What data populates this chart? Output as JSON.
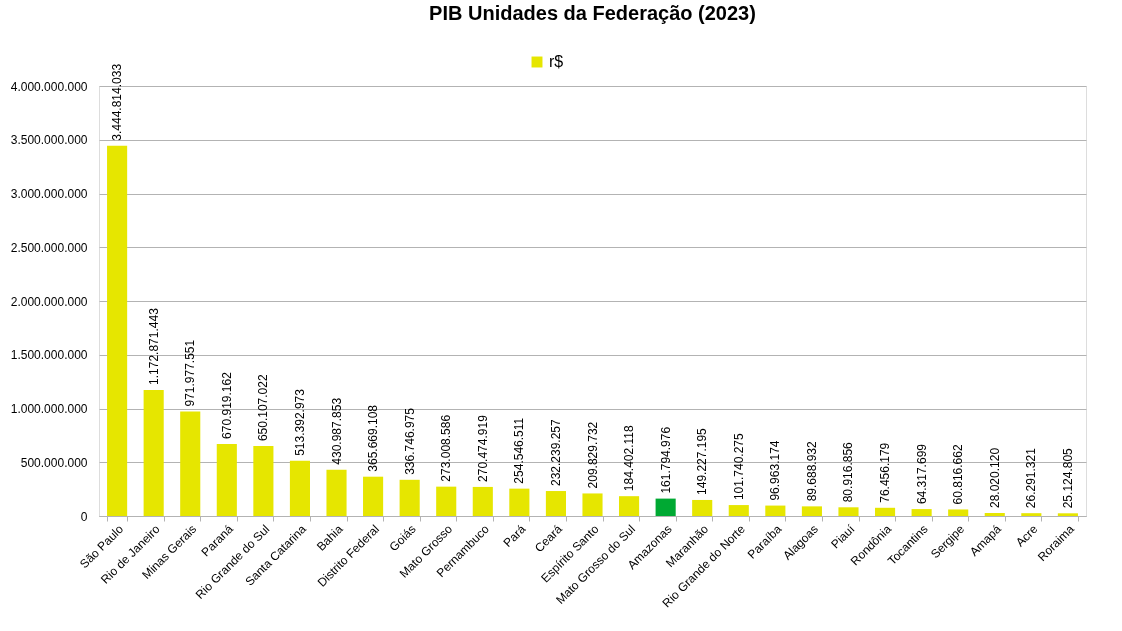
{
  "chart_data": {
    "type": "bar",
    "title": "PIB Unidades da Federação (2023)",
    "categories": [
      "São Paulo",
      "Rio de Janeiro",
      "Minas Gerais",
      "Paraná",
      "Rio Grande do Sul",
      "Santa Catarina",
      "Bahia",
      "Distrito Federal",
      "Goiás",
      "Mato Grosso",
      "Pernambuco",
      "Pará",
      "Ceará",
      "Espírito Santo",
      "Mato Grosso do Sul",
      "Amazonas",
      "Maranhão",
      "Rio Grande do Norte",
      "Paraíba",
      "Alagoas",
      "Piauí",
      "Rondônia",
      "Tocantins",
      "Sergipe",
      "Amapá",
      "Acre",
      "Roraima"
    ],
    "series": [
      {
        "name": "r$",
        "color": "#e6e600",
        "values": [
          3444814033,
          1172871443,
          971977551,
          670919162,
          650107022,
          513392973,
          430987853,
          365669108,
          336746975,
          273008586,
          270474919,
          254546511,
          232239257,
          209829732,
          184402118,
          161794976,
          149227195,
          101740275,
          96963174,
          89688932,
          80916856,
          76456179,
          64317699,
          60816662,
          28020120,
          26291321,
          25124805
        ],
        "colors": [
          "#e6e600",
          "#e6e600",
          "#e6e600",
          "#e6e600",
          "#e6e600",
          "#e6e600",
          "#e6e600",
          "#e6e600",
          "#e6e600",
          "#e6e600",
          "#e6e600",
          "#e6e600",
          "#e6e600",
          "#e6e600",
          "#e6e600",
          "#00a933",
          "#e6e600",
          "#e6e600",
          "#e6e600",
          "#e6e600",
          "#e6e600",
          "#e6e600",
          "#e6e600",
          "#e6e600",
          "#e6e600",
          "#e6e600",
          "#e6e600"
        ],
        "value_labels": [
          "3.444.814.033",
          "1.172.871.443",
          "971.977.551",
          "670.919.162",
          "650.107.022",
          "513.392.973",
          "430.987.853",
          "365.669.108",
          "336.746.975",
          "273.008.586",
          "270.474.919",
          "254.546.511",
          "232.239.257",
          "209.829.732",
          "184.402.118",
          "161.794.976",
          "149.227.195",
          "101.740.275",
          "96.963.174",
          "89.688.932",
          "80.916.856",
          "76.456.179",
          "64.317.699",
          "60.816.662",
          "28.020.120",
          "26.291.321",
          "25.124.805"
        ]
      }
    ],
    "ylim": [
      0,
      4000000000
    ],
    "yticks": [
      {
        "value": 0,
        "label": "0"
      },
      {
        "value": 500000000,
        "label": "500.000.000"
      },
      {
        "value": 1000000000,
        "label": "1.000.000.000"
      },
      {
        "value": 1500000000,
        "label": "1.500.000.000"
      },
      {
        "value": 2000000000,
        "label": "2.000.000.000"
      },
      {
        "value": 2500000000,
        "label": "2.500.000.000"
      },
      {
        "value": 3000000000,
        "label": "3.000.000.000"
      },
      {
        "value": 3500000000,
        "label": "3.500.000.000"
      },
      {
        "value": 4000000000,
        "label": "4.000.000.000"
      }
    ],
    "grid": "y",
    "legend": "top"
  }
}
